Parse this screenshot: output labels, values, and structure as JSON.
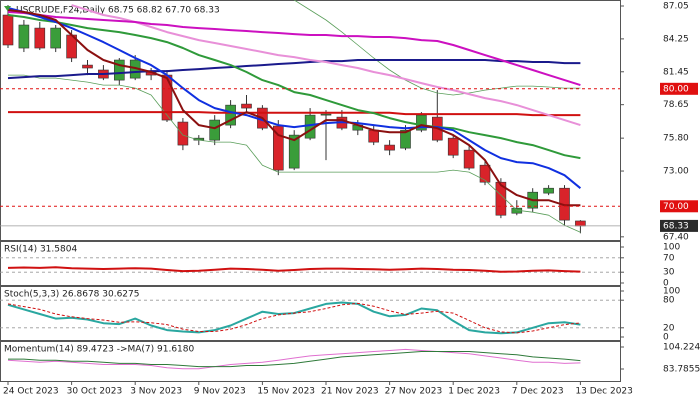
{
  "chart_data": [
    {
      "type": "candlestick",
      "title": "USCRUDE,F24,Daily  68.75 68.82 67.70 68.33",
      "categories": [
        "24 Oct 2023",
        null,
        null,
        null,
        "30 Oct 2023",
        null,
        null,
        null,
        "3 Nov 2023",
        null,
        null,
        null,
        "9 Nov 2023",
        null,
        null,
        null,
        "15 Nov 2023",
        null,
        null,
        null,
        "21 Nov 2023",
        null,
        null,
        null,
        "27 Nov 2023",
        null,
        null,
        null,
        "1 Dec 2023",
        null,
        null,
        null,
        "7 Dec 2023",
        null,
        null,
        null,
        "13 Dec 2023"
      ],
      "open": [
        86.28,
        83.47,
        85.17,
        83.47,
        84.58,
        82.02,
        81.6,
        80.74,
        80.91,
        81.43,
        81.17,
        77.17,
        75.63,
        75.63,
        76.91,
        78.7,
        78.36,
        76.83,
        73.25,
        75.8,
        77.76,
        77.59,
        76.48,
        76.48,
        75.21,
        74.95,
        76.48,
        77.59,
        75.8,
        74.78,
        73.5,
        72.05,
        69.41,
        69.84,
        71.12,
        71.54,
        68.75
      ],
      "high": [
        87.13,
        85.86,
        85.69,
        85.43,
        85.0,
        82.45,
        82.02,
        82.62,
        82.87,
        81.77,
        81.6,
        77.51,
        76.06,
        77.76,
        79.04,
        79.47,
        78.61,
        77.34,
        76.48,
        78.36,
        78.19,
        78.19,
        77.34,
        76.91,
        75.63,
        76.91,
        78.02,
        79.89,
        76.06,
        75.21,
        73.93,
        72.39,
        70.52,
        71.54,
        71.8,
        71.8,
        68.82
      ],
      "low": [
        83.47,
        83.13,
        83.3,
        83.13,
        82.28,
        81.17,
        80.74,
        80.32,
        80.74,
        80.74,
        77.17,
        74.78,
        75.21,
        75.21,
        76.65,
        78.02,
        76.48,
        72.65,
        73.08,
        75.63,
        73.93,
        76.48,
        76.06,
        75.21,
        74.35,
        74.78,
        76.31,
        75.46,
        74.1,
        73.08,
        71.8,
        68.99,
        69.24,
        69.5,
        70.95,
        68.39,
        67.7
      ],
      "close": [
        83.73,
        85.43,
        83.47,
        85.17,
        82.62,
        81.77,
        80.91,
        82.45,
        82.45,
        81.17,
        77.34,
        75.21,
        75.8,
        77.34,
        78.61,
        78.36,
        76.65,
        73.08,
        76.06,
        77.76,
        77.85,
        76.65,
        76.91,
        75.46,
        74.78,
        76.48,
        77.76,
        75.63,
        74.35,
        73.25,
        72.05,
        69.24,
        69.84,
        71.2,
        71.54,
        68.82,
        68.33
      ],
      "up_color": "#3a9d3a",
      "down_color": "#d9232a",
      "ylim": [
        67.13,
        87.56
      ],
      "yticks": [
        {
          "value": 87.05,
          "label": "87.05"
        },
        {
          "value": 84.25,
          "label": "84.25"
        },
        {
          "value": 81.45,
          "label": "81.45"
        },
        {
          "value": 78.65,
          "label": "78.65"
        },
        {
          "value": 75.8,
          "label": "75.80"
        },
        {
          "value": 73.0,
          "label": "73.00"
        },
        {
          "value": 67.4,
          "label": "67.40"
        }
      ],
      "levels": [
        {
          "value": 80.0,
          "label": "80.00",
          "color": "#e01010"
        },
        {
          "value": 70.0,
          "label": "70.00",
          "color": "#e01010"
        }
      ],
      "last": {
        "value": 68.33,
        "label": "68.33",
        "color": "#2b2b2b"
      },
      "grid": false,
      "series": [
        {
          "color": "#5a9e5a",
          "width": 0.8,
          "values": [
            81.17,
            81.17,
            80.91,
            80.91,
            80.74,
            80.57,
            80.32,
            80.32,
            80.06,
            79.47,
            77.76,
            76.06,
            75.63,
            75.46,
            75.46,
            75.21,
            73.5,
            72.91,
            72.91,
            72.91,
            72.91,
            72.91,
            72.91,
            72.91,
            72.91,
            72.91,
            72.91,
            72.91,
            73.08,
            72.91,
            72.22,
            70.95,
            69.67,
            69.5,
            69.24,
            68.39,
            67.79
          ]
        },
        {
          "color": "#5a9e5a",
          "width": 0.8,
          "values": [
            null,
            null,
            null,
            null,
            null,
            null,
            null,
            null,
            null,
            null,
            null,
            null,
            null,
            null,
            null,
            null,
            null,
            null,
            87.56,
            86.71,
            85.86,
            84.83,
            83.73,
            82.62,
            81.6,
            80.74,
            80.06,
            79.64,
            79.47,
            79.64,
            79.89,
            80.06,
            80.23,
            80.23,
            80.15,
            80.06,
            80.06
          ]
        },
        {
          "color": "#1a1a8c",
          "width": 2,
          "values": [
            80.91,
            81.0,
            81.08,
            81.08,
            81.17,
            81.26,
            81.26,
            81.34,
            81.43,
            81.51,
            81.51,
            81.6,
            81.68,
            81.77,
            81.85,
            81.94,
            82.02,
            82.11,
            82.19,
            82.28,
            82.36,
            82.36,
            82.45,
            82.45,
            82.45,
            82.45,
            82.45,
            82.45,
            82.45,
            82.45,
            82.45,
            82.36,
            82.36,
            82.28,
            82.28,
            82.19,
            82.19
          ]
        },
        {
          "color": "#d01010",
          "width": 2,
          "values": [
            78.02,
            78.02,
            78.02,
            78.02,
            78.02,
            78.02,
            78.02,
            78.02,
            78.02,
            78.02,
            78.02,
            78.02,
            78.02,
            77.97,
            77.97,
            77.97,
            77.97,
            77.97,
            77.97,
            77.97,
            77.97,
            77.97,
            77.97,
            77.97,
            77.97,
            77.85,
            77.85,
            77.85,
            77.85,
            77.85,
            77.85,
            77.85,
            77.85,
            77.76,
            77.76,
            77.76,
            77.76
          ]
        },
        {
          "color": "#e890d8",
          "width": 2,
          "values": [
            null,
            null,
            null,
            null,
            87.13,
            86.71,
            86.28,
            86.03,
            85.69,
            85.26,
            84.83,
            84.49,
            84.15,
            83.9,
            83.64,
            83.39,
            83.13,
            82.87,
            82.7,
            82.45,
            82.28,
            82.02,
            81.77,
            81.43,
            81.17,
            80.83,
            80.49,
            80.15,
            79.89,
            79.55,
            79.21,
            78.95,
            78.61,
            78.19,
            77.76,
            77.34,
            76.91
          ]
        },
        {
          "color": "#cc10c0",
          "width": 2,
          "values": [
            86.54,
            86.45,
            86.28,
            86.11,
            86.03,
            85.94,
            85.86,
            85.77,
            85.69,
            85.52,
            85.43,
            85.26,
            85.17,
            85.09,
            85.0,
            84.92,
            84.83,
            84.75,
            84.66,
            84.58,
            84.58,
            84.49,
            84.49,
            84.41,
            84.41,
            84.32,
            84.15,
            84.07,
            83.73,
            83.3,
            82.87,
            82.45,
            82.02,
            81.6,
            81.17,
            80.74,
            80.32
          ]
        },
        {
          "color": "#2f9a3a",
          "width": 2,
          "values": [
            86.28,
            86.11,
            85.86,
            85.69,
            85.43,
            85.17,
            85.0,
            84.83,
            84.58,
            84.32,
            83.98,
            83.47,
            82.87,
            82.45,
            82.02,
            81.43,
            80.74,
            80.32,
            79.72,
            79.47,
            79.04,
            78.61,
            78.19,
            77.93,
            77.51,
            77.17,
            76.91,
            76.74,
            76.65,
            76.31,
            76.06,
            75.8,
            75.46,
            75.21,
            74.78,
            74.35,
            74.1
          ]
        },
        {
          "color": "#1030e0",
          "width": 2,
          "values": [
            86.88,
            86.54,
            86.11,
            85.69,
            85.17,
            84.58,
            83.98,
            83.3,
            82.62,
            82.02,
            81.17,
            80.06,
            79.04,
            78.36,
            78.02,
            77.76,
            77.34,
            76.91,
            76.74,
            76.91,
            77.08,
            77.17,
            77.08,
            76.91,
            76.74,
            76.65,
            76.74,
            76.74,
            76.48,
            75.63,
            74.78,
            74.1,
            73.76,
            73.67,
            73.25,
            72.65,
            71.54
          ]
        },
        {
          "color": "#8b1010",
          "width": 2,
          "values": [
            86.71,
            86.54,
            86.28,
            85.86,
            84.58,
            83.3,
            82.45,
            82.02,
            81.77,
            81.43,
            80.91,
            78.19,
            76.91,
            76.65,
            77.34,
            78.02,
            77.51,
            76.06,
            75.63,
            76.48,
            77.34,
            77.34,
            76.91,
            76.48,
            76.31,
            76.31,
            76.91,
            76.65,
            76.06,
            75.21,
            73.93,
            71.8,
            70.95,
            70.52,
            70.52,
            70.09,
            70.09
          ]
        }
      ]
    },
    {
      "type": "line",
      "title": "RSI(14) 31.5804",
      "ylim": [
        0,
        100
      ],
      "yticks": [
        100,
        70,
        30,
        0
      ],
      "grid": true,
      "series": [
        {
          "color": "#d01010",
          "width": 2,
          "values": [
            42,
            43,
            42,
            44,
            41,
            40,
            39,
            40,
            41,
            40,
            36,
            33,
            34,
            37,
            40,
            39,
            37,
            34,
            36,
            39,
            40,
            40,
            39,
            38,
            37,
            38,
            40,
            39,
            37,
            36,
            34,
            31,
            32,
            34,
            35,
            33,
            31.58
          ]
        }
      ]
    },
    {
      "type": "line",
      "title": "Stoch(5,3,3) 26.8678 30.6275",
      "ylim": [
        0,
        100
      ],
      "yticks": [
        100,
        80,
        20,
        0
      ],
      "grid": true,
      "series": [
        {
          "color": "#2aa7a0",
          "width": 2,
          "values": [
            70,
            60,
            50,
            40,
            42,
            38,
            30,
            28,
            40,
            25,
            15,
            12,
            10,
            15,
            25,
            40,
            55,
            50,
            52,
            62,
            72,
            75,
            72,
            55,
            45,
            48,
            62,
            58,
            35,
            15,
            10,
            8,
            10,
            20,
            30,
            32,
            26.8678
          ]
        },
        {
          "color": "#d01010",
          "width": 1,
          "dash": true,
          "values": [
            72,
            66,
            60,
            50,
            44,
            40,
            37,
            32,
            33,
            31,
            27,
            17,
            12,
            12,
            17,
            27,
            40,
            48,
            52,
            55,
            62,
            70,
            73,
            67,
            57,
            49,
            52,
            56,
            52,
            36,
            20,
            11,
            9,
            13,
            20,
            27,
            30.6275
          ]
        }
      ]
    },
    {
      "type": "line",
      "title": "Momentum(14) 89.4723 ->MA(7) 91.6180",
      "ylim": [
        72.63,
        109.8
      ],
      "yticks": [
        104.2248,
        83.7855
      ],
      "grid": false,
      "series": [
        {
          "color": "#e070d0",
          "width": 1,
          "values": [
            92,
            91,
            90,
            91,
            90,
            89,
            88,
            88,
            88,
            87,
            85,
            84,
            84,
            86,
            88,
            89,
            90,
            92,
            94,
            96,
            97,
            98,
            99,
            100,
            101,
            102,
            101,
            100,
            99,
            98,
            96,
            94,
            92,
            90,
            90,
            89,
            89.4723
          ]
        },
        {
          "color": "#2f7a3a",
          "width": 1,
          "values": [
            93,
            93,
            92,
            92,
            91,
            91,
            90,
            89,
            89,
            88,
            88,
            87,
            86,
            86,
            86,
            87,
            87,
            88,
            89,
            91,
            93,
            95,
            96,
            97,
            98,
            99,
            100,
            100,
            100,
            100,
            99,
            98,
            97,
            95,
            94,
            93,
            91.618
          ]
        }
      ]
    }
  ]
}
